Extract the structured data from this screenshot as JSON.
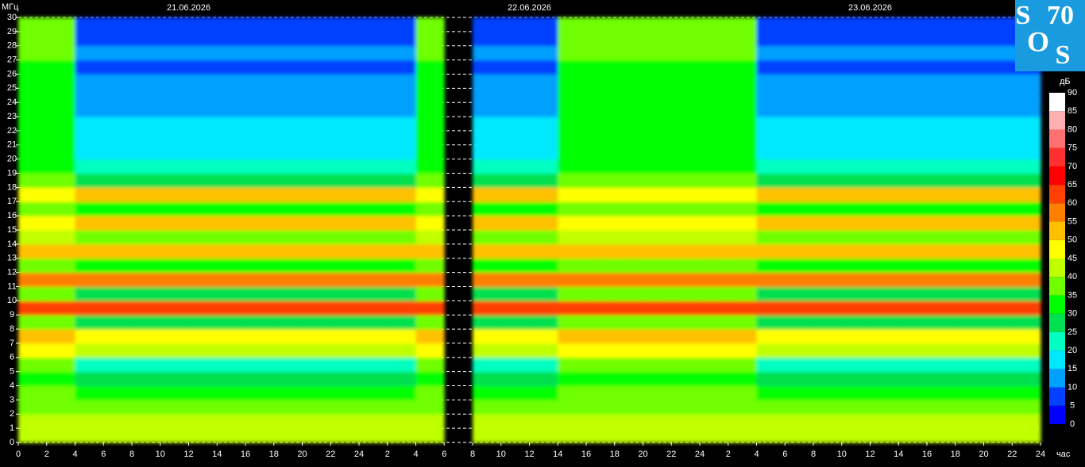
{
  "chart_data": {
    "type": "heatmap",
    "y_label": "МГц",
    "x_label": "час",
    "colorbar_label": "дБ",
    "dates": [
      "21.06.2026",
      "22.06.2026",
      "23.06.2026"
    ],
    "logo": {
      "s1": "S",
      "num": "70",
      "o": "O",
      "s2": "S"
    },
    "xlim": [
      0,
      72
    ],
    "ylim": [
      0,
      30
    ],
    "xticks": [
      0,
      2,
      4,
      6,
      8,
      10,
      12,
      14,
      16,
      18,
      20,
      22,
      24,
      {
        "value": 26,
        "label": "2"
      },
      {
        "value": 28,
        "label": "4"
      },
      {
        "value": 30,
        "label": "6"
      },
      {
        "value": 32,
        "label": "8"
      },
      {
        "value": 34,
        "label": "10"
      },
      {
        "value": 36,
        "label": "12"
      },
      {
        "value": 38,
        "label": "14"
      },
      {
        "value": 40,
        "label": "16"
      },
      {
        "value": 42,
        "label": "18"
      },
      {
        "value": 44,
        "label": "20"
      },
      {
        "value": 46,
        "label": "22"
      },
      {
        "value": 48,
        "label": "24"
      },
      {
        "value": 50,
        "label": "2"
      },
      {
        "value": 52,
        "label": "4"
      },
      {
        "value": 54,
        "label": "6"
      },
      {
        "value": 56,
        "label": "8"
      },
      {
        "value": 58,
        "label": "10"
      },
      {
        "value": 60,
        "label": "12"
      },
      {
        "value": 62,
        "label": "14"
      },
      {
        "value": 64,
        "label": "16"
      },
      {
        "value": 66,
        "label": "18"
      },
      {
        "value": 68,
        "label": "20"
      },
      {
        "value": 70,
        "label": "22"
      },
      {
        "value": 72,
        "label": "24"
      }
    ],
    "yticks": [
      0,
      1,
      2,
      3,
      4,
      5,
      6,
      7,
      8,
      9,
      10,
      11,
      12,
      13,
      14,
      15,
      16,
      17,
      18,
      19,
      20,
      21,
      22,
      23,
      24,
      25,
      26,
      27,
      28,
      29,
      30
    ],
    "grid": true,
    "clim": [
      0,
      90
    ],
    "colorbar_ticks": [
      0,
      5,
      10,
      15,
      20,
      25,
      30,
      35,
      40,
      45,
      50,
      55,
      60,
      65,
      70,
      75,
      80,
      85,
      90
    ],
    "colorscale": [
      "#0000ff",
      "#0040ff",
      "#00a0ff",
      "#00e8ff",
      "#00ffc0",
      "#00e050",
      "#00ff00",
      "#70ff00",
      "#c0ff00",
      "#ffff00",
      "#ffc000",
      "#ff8000",
      "#ff4000",
      "#ff0000",
      "#ff3030",
      "#ff7070",
      "#ffb0b0",
      "#ffffff"
    ],
    "x_edges": [
      0,
      2,
      4,
      6,
      8,
      10,
      12,
      14,
      16,
      18,
      20,
      22,
      24,
      26,
      28,
      30,
      32,
      34,
      36,
      38,
      40,
      42,
      44,
      46,
      48,
      50,
      52,
      54,
      56,
      58,
      60,
      62,
      64,
      66,
      68,
      70,
      72
    ],
    "y_edges": [
      0,
      1,
      2,
      3,
      4,
      5,
      6,
      7,
      8,
      9,
      10,
      11,
      12,
      13,
      14,
      15,
      16,
      17,
      18,
      19,
      20,
      21,
      22,
      23,
      24,
      25,
      26,
      27,
      28,
      29,
      30
    ],
    "z": [
      [
        42,
        42,
        42,
        42,
        42,
        42,
        42,
        42,
        42,
        42,
        42,
        42,
        42,
        42,
        42,
        null,
        42,
        42,
        42,
        42,
        42,
        42,
        42,
        42,
        42,
        42,
        42,
        42,
        42,
        42,
        42,
        42,
        42,
        42,
        42,
        42
      ],
      [
        40,
        40,
        40,
        40,
        40,
        40,
        40,
        40,
        40,
        40,
        40,
        40,
        40,
        40,
        40,
        null,
        40,
        40,
        40,
        40,
        40,
        40,
        40,
        40,
        40,
        40,
        40,
        40,
        40,
        40,
        40,
        40,
        40,
        40,
        40,
        40
      ],
      [
        37,
        37,
        35,
        35,
        35,
        35,
        35,
        35,
        35,
        35,
        35,
        35,
        35,
        35,
        37,
        null,
        35,
        35,
        35,
        37,
        37,
        37,
        37,
        37,
        37,
        37,
        35,
        35,
        35,
        35,
        35,
        35,
        35,
        35,
        35,
        35
      ],
      [
        35,
        35,
        33,
        33,
        33,
        33,
        33,
        33,
        33,
        33,
        33,
        33,
        33,
        33,
        35,
        null,
        33,
        33,
        33,
        35,
        35,
        35,
        35,
        35,
        35,
        35,
        33,
        33,
        33,
        33,
        33,
        33,
        33,
        33,
        33,
        33
      ],
      [
        33,
        33,
        25,
        25,
        25,
        25,
        25,
        25,
        25,
        25,
        25,
        25,
        25,
        25,
        33,
        null,
        25,
        25,
        25,
        33,
        33,
        33,
        33,
        33,
        33,
        33,
        25,
        25,
        25,
        25,
        25,
        25,
        25,
        25,
        25,
        25
      ],
      [
        35,
        35,
        22,
        22,
        22,
        22,
        22,
        22,
        22,
        22,
        22,
        22,
        22,
        22,
        35,
        null,
        22,
        22,
        22,
        35,
        35,
        35,
        35,
        35,
        35,
        35,
        22,
        22,
        22,
        22,
        22,
        22,
        22,
        22,
        22,
        22
      ],
      [
        45,
        45,
        42,
        42,
        42,
        42,
        42,
        42,
        42,
        42,
        42,
        42,
        42,
        42,
        45,
        null,
        42,
        42,
        42,
        45,
        45,
        45,
        45,
        45,
        45,
        45,
        42,
        42,
        42,
        42,
        42,
        42,
        42,
        42,
        42,
        42
      ],
      [
        50,
        50,
        48,
        48,
        48,
        48,
        48,
        48,
        48,
        48,
        48,
        48,
        48,
        48,
        50,
        null,
        48,
        48,
        48,
        50,
        50,
        50,
        50,
        50,
        50,
        50,
        48,
        48,
        48,
        48,
        48,
        48,
        48,
        48,
        48,
        48
      ],
      [
        35,
        35,
        25,
        25,
        25,
        25,
        25,
        25,
        25,
        25,
        25,
        25,
        25,
        25,
        35,
        null,
        25,
        25,
        25,
        35,
        35,
        35,
        35,
        35,
        35,
        35,
        25,
        25,
        25,
        25,
        25,
        25,
        25,
        25,
        25,
        25
      ],
      [
        60,
        60,
        60,
        60,
        60,
        60,
        60,
        60,
        60,
        60,
        60,
        60,
        60,
        60,
        60,
        null,
        60,
        60,
        60,
        60,
        60,
        60,
        60,
        60,
        60,
        60,
        60,
        60,
        60,
        60,
        60,
        60,
        60,
        60,
        60,
        60
      ],
      [
        38,
        38,
        28,
        28,
        28,
        28,
        28,
        28,
        28,
        28,
        28,
        28,
        28,
        28,
        38,
        null,
        28,
        28,
        28,
        38,
        38,
        38,
        38,
        38,
        38,
        38,
        28,
        28,
        28,
        28,
        28,
        28,
        28,
        28,
        28,
        28
      ],
      [
        55,
        55,
        55,
        55,
        55,
        55,
        55,
        55,
        55,
        55,
        55,
        55,
        55,
        55,
        55,
        null,
        55,
        55,
        55,
        55,
        55,
        55,
        55,
        55,
        55,
        55,
        55,
        55,
        55,
        55,
        55,
        55,
        55,
        55,
        55,
        55
      ],
      [
        38,
        38,
        30,
        30,
        30,
        30,
        30,
        30,
        30,
        30,
        30,
        30,
        30,
        30,
        38,
        null,
        30,
        30,
        30,
        38,
        38,
        38,
        38,
        38,
        38,
        38,
        30,
        30,
        30,
        30,
        30,
        30,
        30,
        30,
        30,
        30
      ],
      [
        50,
        50,
        50,
        50,
        50,
        50,
        50,
        50,
        50,
        50,
        50,
        50,
        50,
        50,
        50,
        null,
        50,
        50,
        50,
        50,
        50,
        50,
        50,
        50,
        50,
        50,
        50,
        50,
        50,
        50,
        50,
        50,
        50,
        50,
        50,
        50
      ],
      [
        40,
        40,
        35,
        35,
        35,
        35,
        35,
        35,
        35,
        35,
        35,
        35,
        35,
        35,
        40,
        null,
        35,
        35,
        35,
        40,
        40,
        40,
        40,
        40,
        40,
        40,
        35,
        35,
        35,
        35,
        35,
        35,
        35,
        35,
        35,
        35
      ],
      [
        48,
        48,
        50,
        50,
        50,
        50,
        50,
        50,
        50,
        50,
        50,
        50,
        50,
        50,
        48,
        null,
        50,
        50,
        50,
        48,
        48,
        48,
        48,
        48,
        48,
        48,
        50,
        50,
        50,
        50,
        50,
        50,
        50,
        50,
        50,
        50
      ],
      [
        38,
        38,
        32,
        32,
        32,
        32,
        32,
        32,
        32,
        32,
        32,
        32,
        32,
        32,
        38,
        null,
        32,
        32,
        32,
        38,
        38,
        38,
        38,
        38,
        38,
        38,
        32,
        32,
        32,
        32,
        32,
        32,
        32,
        32,
        32,
        32
      ],
      [
        45,
        45,
        50,
        50,
        50,
        50,
        50,
        50,
        50,
        50,
        50,
        50,
        50,
        50,
        45,
        null,
        50,
        50,
        50,
        45,
        45,
        45,
        45,
        45,
        45,
        45,
        50,
        50,
        50,
        50,
        50,
        50,
        50,
        50,
        50,
        50
      ],
      [
        35,
        35,
        25,
        25,
        25,
        25,
        25,
        25,
        25,
        25,
        25,
        25,
        25,
        25,
        35,
        null,
        25,
        25,
        25,
        35,
        35,
        35,
        35,
        35,
        35,
        35,
        25,
        25,
        25,
        25,
        25,
        25,
        25,
        25,
        25,
        25
      ],
      [
        33,
        33,
        20,
        20,
        20,
        20,
        20,
        20,
        20,
        20,
        20,
        20,
        20,
        20,
        33,
        null,
        20,
        20,
        20,
        33,
        33,
        33,
        33,
        33,
        33,
        33,
        20,
        20,
        20,
        20,
        20,
        20,
        20,
        20,
        20,
        20
      ],
      [
        33,
        33,
        18,
        18,
        18,
        18,
        18,
        18,
        18,
        18,
        18,
        18,
        18,
        18,
        33,
        null,
        18,
        18,
        18,
        33,
        33,
        33,
        33,
        33,
        33,
        33,
        18,
        18,
        18,
        18,
        18,
        18,
        18,
        18,
        18,
        18
      ],
      [
        33,
        33,
        18,
        18,
        18,
        18,
        18,
        18,
        18,
        18,
        18,
        18,
        18,
        18,
        33,
        null,
        18,
        18,
        18,
        33,
        33,
        33,
        33,
        33,
        33,
        33,
        18,
        18,
        18,
        18,
        18,
        18,
        18,
        18,
        18,
        18
      ],
      [
        33,
        33,
        15,
        15,
        15,
        15,
        15,
        15,
        15,
        15,
        15,
        15,
        15,
        15,
        33,
        null,
        15,
        15,
        15,
        33,
        33,
        33,
        33,
        33,
        33,
        33,
        15,
        15,
        15,
        15,
        15,
        15,
        15,
        15,
        15,
        15
      ],
      [
        33,
        33,
        12,
        12,
        12,
        12,
        12,
        12,
        12,
        12,
        12,
        12,
        12,
        12,
        33,
        null,
        12,
        12,
        12,
        33,
        33,
        33,
        33,
        33,
        33,
        33,
        12,
        12,
        12,
        12,
        12,
        12,
        12,
        12,
        12,
        12
      ],
      [
        33,
        33,
        12,
        12,
        12,
        12,
        12,
        12,
        12,
        12,
        12,
        12,
        12,
        12,
        33,
        null,
        12,
        12,
        12,
        33,
        33,
        33,
        33,
        33,
        33,
        33,
        12,
        12,
        12,
        12,
        12,
        12,
        12,
        12,
        12,
        12
      ],
      [
        33,
        33,
        10,
        10,
        10,
        10,
        10,
        10,
        10,
        10,
        10,
        10,
        10,
        10,
        33,
        null,
        10,
        10,
        10,
        33,
        33,
        33,
        33,
        33,
        33,
        33,
        10,
        10,
        10,
        10,
        10,
        10,
        10,
        10,
        10,
        10
      ],
      [
        33,
        33,
        8,
        8,
        8,
        8,
        8,
        8,
        8,
        8,
        8,
        8,
        8,
        8,
        33,
        null,
        8,
        8,
        8,
        33,
        33,
        33,
        33,
        33,
        33,
        33,
        8,
        8,
        8,
        8,
        8,
        8,
        8,
        8,
        8,
        8
      ],
      [
        35,
        35,
        12,
        12,
        12,
        12,
        12,
        12,
        12,
        12,
        12,
        12,
        12,
        12,
        35,
        null,
        12,
        12,
        12,
        35,
        35,
        35,
        35,
        35,
        35,
        35,
        12,
        12,
        12,
        12,
        12,
        12,
        12,
        12,
        12,
        12
      ],
      [
        35,
        35,
        5,
        5,
        5,
        5,
        5,
        5,
        5,
        5,
        5,
        5,
        5,
        5,
        35,
        null,
        5,
        5,
        5,
        35,
        35,
        35,
        35,
        35,
        35,
        35,
        5,
        5,
        5,
        5,
        5,
        5,
        5,
        5,
        5,
        5
      ],
      [
        35,
        35,
        5,
        5,
        5,
        5,
        5,
        5,
        5,
        5,
        5,
        5,
        5,
        5,
        35,
        null,
        5,
        5,
        5,
        35,
        35,
        35,
        35,
        35,
        35,
        35,
        5,
        5,
        5,
        5,
        5,
        5,
        5,
        5,
        5,
        5
      ]
    ]
  }
}
